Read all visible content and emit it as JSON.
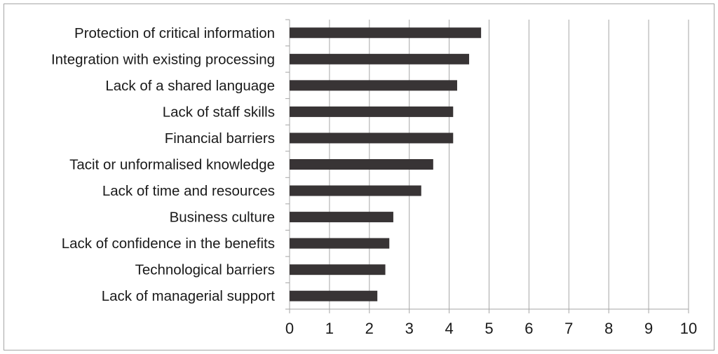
{
  "chart_data": {
    "type": "bar",
    "orientation": "horizontal",
    "categories": [
      "Protection of critical information",
      "Integration with existing processing",
      "Lack of a shared language",
      "Lack of staff skills",
      "Financial barriers",
      "Tacit or unformalised knowledge",
      "Lack of time and resources",
      "Business culture",
      "Lack of confidence in the benefits",
      "Technological barriers",
      "Lack of managerial support"
    ],
    "values": [
      4.8,
      4.5,
      4.2,
      4.1,
      4.1,
      3.6,
      3.3,
      2.6,
      2.5,
      2.4,
      2.2
    ],
    "xlim": [
      0,
      10
    ],
    "xticks": [
      "0",
      "1",
      "2",
      "3",
      "4",
      "5",
      "6",
      "7",
      "8",
      "9",
      "10"
    ],
    "title": "",
    "xlabel": "",
    "ylabel": "",
    "grid": "vertical",
    "bar_color": "#383435",
    "grid_color": "#a6a6a6"
  }
}
